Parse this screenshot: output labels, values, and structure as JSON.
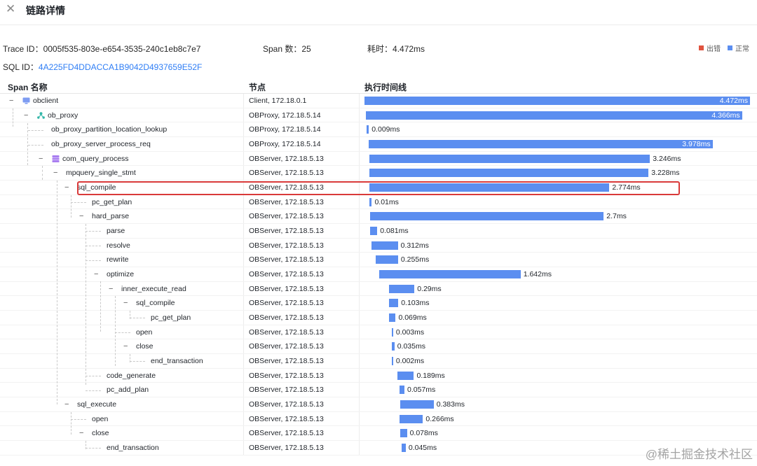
{
  "header": {
    "title": "链路详情",
    "close_icon": "close-icon"
  },
  "meta": {
    "trace_label": "Trace ID：",
    "trace_id": "0005f535-803e-e654-3535-240c1eb8c7e7",
    "span_label": "Span 数：",
    "span_count": "25",
    "time_label": "耗时：",
    "time_value": "4.472ms",
    "sql_label": "SQL ID：",
    "sql_id": "4A225FD4DDACCA1B9042D4937659E52F"
  },
  "legend": {
    "error_label": "出错",
    "error_color": "#e0533f",
    "normal_label": "正常",
    "normal_color": "#5b8ef0"
  },
  "columns": {
    "span": "Span 名称",
    "node": "节点",
    "timeline": "执行时间线"
  },
  "rows": [
    {
      "name": "obclient",
      "node": "Client, 172.18.0.1",
      "duration": "4.472ms",
      "icon": "monitor-icon"
    },
    {
      "name": "ob_proxy",
      "node": "OBProxy, 172.18.5.14",
      "duration": "4.366ms",
      "icon": "proxy-icon"
    },
    {
      "name": "ob_proxy_partition_location_lookup",
      "node": "OBProxy, 172.18.5.14",
      "duration": "0.009ms"
    },
    {
      "name": "ob_proxy_server_process_req",
      "node": "OBProxy, 172.18.5.14",
      "duration": "3.978ms"
    },
    {
      "name": "com_query_process",
      "node": "OBServer, 172.18.5.13",
      "duration": "3.246ms",
      "icon": "server-icon"
    },
    {
      "name": "mpquery_single_stmt",
      "node": "OBServer, 172.18.5.13",
      "duration": "3.228ms"
    },
    {
      "name": "sql_compile",
      "node": "OBServer, 172.18.5.13",
      "duration": "2.774ms"
    },
    {
      "name": "pc_get_plan",
      "node": "OBServer, 172.18.5.13",
      "duration": "0.01ms"
    },
    {
      "name": "hard_parse",
      "node": "OBServer, 172.18.5.13",
      "duration": "2.7ms"
    },
    {
      "name": "parse",
      "node": "OBServer, 172.18.5.13",
      "duration": "0.081ms"
    },
    {
      "name": "resolve",
      "node": "OBServer, 172.18.5.13",
      "duration": "0.312ms"
    },
    {
      "name": "rewrite",
      "node": "OBServer, 172.18.5.13",
      "duration": "0.255ms"
    },
    {
      "name": "optimize",
      "node": "OBServer, 172.18.5.13",
      "duration": "1.642ms"
    },
    {
      "name": "inner_execute_read",
      "node": "OBServer, 172.18.5.13",
      "duration": "0.29ms"
    },
    {
      "name": "sql_compile",
      "node": "OBServer, 172.18.5.13",
      "duration": "0.103ms"
    },
    {
      "name": "pc_get_plan",
      "node": "OBServer, 172.18.5.13",
      "duration": "0.069ms"
    },
    {
      "name": "open",
      "node": "OBServer, 172.18.5.13",
      "duration": "0.003ms"
    },
    {
      "name": "close",
      "node": "OBServer, 172.18.5.13",
      "duration": "0.035ms"
    },
    {
      "name": "end_transaction",
      "node": "OBServer, 172.18.5.13",
      "duration": "0.002ms"
    },
    {
      "name": "code_generate",
      "node": "OBServer, 172.18.5.13",
      "duration": "0.189ms"
    },
    {
      "name": "pc_add_plan",
      "node": "OBServer, 172.18.5.13",
      "duration": "0.057ms"
    },
    {
      "name": "sql_execute",
      "node": "OBServer, 172.18.5.13",
      "duration": "0.383ms"
    },
    {
      "name": "open",
      "node": "OBServer, 172.18.5.13",
      "duration": "0.266ms"
    },
    {
      "name": "close",
      "node": "OBServer, 172.18.5.13",
      "duration": "0.078ms"
    },
    {
      "name": "end_transaction",
      "node": "OBServer, 172.18.5.13",
      "duration": "0.045ms"
    }
  ],
  "highlighted_row": "sql_compile",
  "watermark": "@稀土掘金技术社区"
}
